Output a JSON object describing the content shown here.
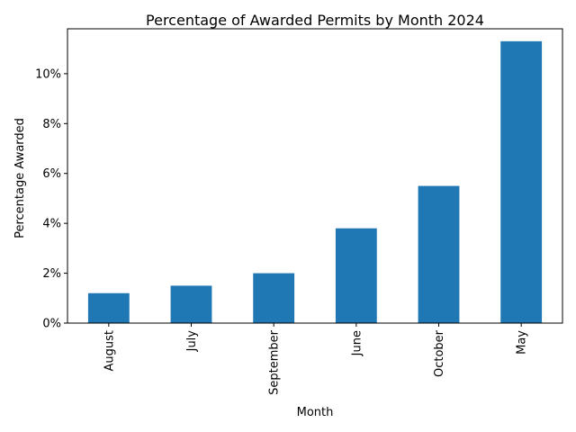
{
  "chart_data": {
    "type": "bar",
    "title": "Percentage of Awarded Permits by Month 2024",
    "xlabel": "Month",
    "ylabel": "Percentage Awarded",
    "categories": [
      "August",
      "July",
      "September",
      "June",
      "October",
      "May"
    ],
    "values": [
      1.2,
      1.5,
      2.0,
      3.8,
      5.5,
      11.3
    ],
    "ylim": [
      0,
      11.8
    ],
    "yticks": [
      0,
      2,
      4,
      6,
      8,
      10
    ],
    "ytick_labels": [
      "0%",
      "2%",
      "4%",
      "6%",
      "8%",
      "10%"
    ],
    "grid": false,
    "legend": "none",
    "bar_color": "#1f77b4"
  }
}
